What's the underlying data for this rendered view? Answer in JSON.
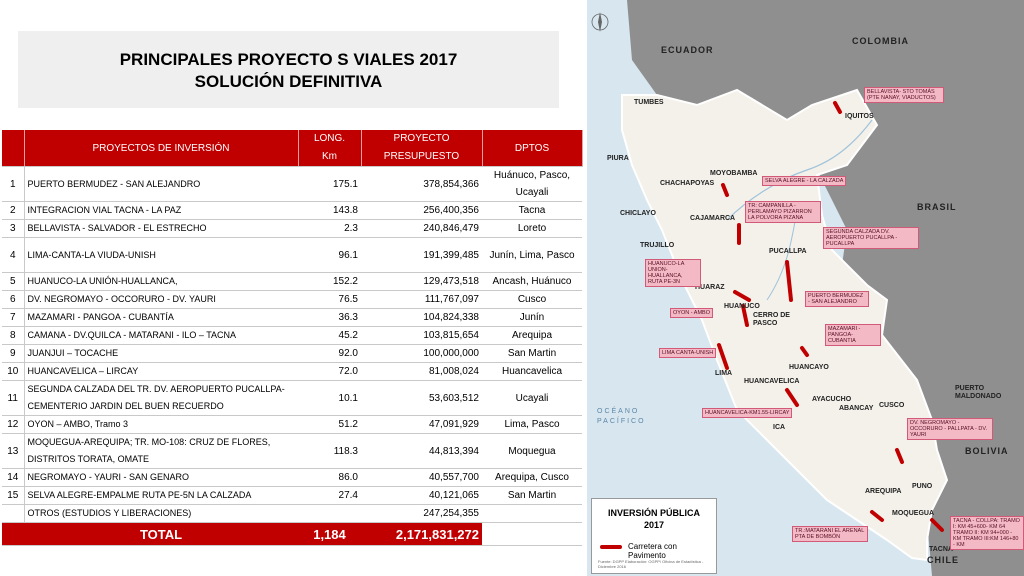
{
  "title": {
    "line1": "PRINCIPALES PROYECTO S VIALES  2017",
    "line2": "SOLUCIÓN DEFINITIVA"
  },
  "table": {
    "headers": {
      "projects": "PROYECTOS DE INVERSIÓN",
      "length": "LONG.\nKm",
      "budget": "PROYECTO\nPRESUPUESTO",
      "depts": "DPTOS"
    },
    "rows": [
      {
        "n": "1",
        "name": "PUERTO BERMUDEZ - SAN ALEJANDRO",
        "km": "175.1",
        "budget": "378,854,366",
        "dept": "Huánuco, Pasco, Ucayali"
      },
      {
        "n": "2",
        "name": "INTEGRACION VIAL TACNA - LA PAZ",
        "km": "143.8",
        "budget": "256,400,356",
        "dept": "Tacna"
      },
      {
        "n": "3",
        "name": "BELLAVISTA - SALVADOR - EL ESTRECHO",
        "km": "2.3",
        "budget": "240,846,479",
        "dept": "Loreto"
      },
      {
        "n": "4",
        "name": "LIMA-CANTA-LA VIUDA-UNISH",
        "km": "96.1",
        "budget": "191,399,485",
        "dept": "Junín, Lima, Pasco"
      },
      {
        "n": "5",
        "name": "HUANUCO-LA UNIÓN-HUALLANCA,",
        "km": "152.2",
        "budget": "129,473,518",
        "dept": "Ancash, Huánuco"
      },
      {
        "n": "6",
        "name": "DV. NEGROMAYO - OCCORURO - DV. YAURI",
        "km": "76.5",
        "budget": "111,767,097",
        "dept": "Cusco"
      },
      {
        "n": "7",
        "name": "MAZAMARI - PANGOA - CUBANTÍA",
        "km": "36.3",
        "budget": "104,824,338",
        "dept": "Junín"
      },
      {
        "n": "8",
        "name": "CAMANA - DV.QUILCA - MATARANI - ILO – TACNA",
        "km": "45.2",
        "budget": "103,815,654",
        "dept": "Arequipa"
      },
      {
        "n": "9",
        "name": "JUANJUI – TOCACHE",
        "km": "92.0",
        "budget": "100,000,000",
        "dept": "San Martin"
      },
      {
        "n": "10",
        "name": "HUANCAVELICA – LIRCAY",
        "km": "72.0",
        "budget": "81,008,024",
        "dept": "Huancavelica"
      },
      {
        "n": "11",
        "name": "SEGUNDA CALZADA DEL TR. DV. AEROPUERTO PUCALLPA-CEMENTERIO JARDIN DEL BUEN RECUERDO",
        "km": "10.1",
        "budget": "53,603,512",
        "dept": "Ucayali"
      },
      {
        "n": "12",
        "name": "OYON – AMBO, Tramo 3",
        "km": "51.2",
        "budget": "47,091,929",
        "dept": "Lima, Pasco"
      },
      {
        "n": "13",
        "name": "MOQUEGUA-AREQUIPA; TR. MO-108: CRUZ DE FLORES, DISTRITOS TORATA, OMATE",
        "km": "118.3",
        "budget": "44,813,394",
        "dept": "Moquegua"
      },
      {
        "n": "14",
        "name": " NEGROMAYO - YAURI - SAN GENARO",
        "km": "86.0",
        "budget": "40,557,700",
        "dept": "Arequipa, Cusco"
      },
      {
        "n": "15",
        "name": "SELVA ALEGRE-EMPALME RUTA PE-5N LA CALZADA",
        "km": "27.4",
        "budget": "40,121,065",
        "dept": "San Martin"
      },
      {
        "n": "",
        "name": "OTROS (ESTUDIOS Y LIBERACIONES)",
        "km": "",
        "budget": "247,254,355",
        "dept": ""
      }
    ],
    "total": {
      "label": "TOTAL",
      "km": "1,184",
      "budget": "2,171,831,272"
    }
  },
  "map": {
    "countries": [
      "ECUADOR",
      "COLOMBIA",
      "BRASIL",
      "BOLIVIA",
      "CHILE"
    ],
    "ocean": [
      "OCÉANO",
      "PACÍFICO"
    ],
    "cities": {
      "tumbes": "TUMBES",
      "piura": "PIURA",
      "chiclayo": "CHICLAYO",
      "chachapoyas": "CHACHAPOYAS",
      "moyobamba": "MOYOBAMBA",
      "cajamarca": "CAJAMARCA",
      "trujillo": "TRUJILLO",
      "huaraz": "HUARAZ",
      "huanuco": "HUANUCO",
      "cerro": "CERRO DE PASCO",
      "lima": "LIMA",
      "huancayo": "HUANCAYO",
      "huancavelica": "HUANCAVELICA",
      "ica": "ICA",
      "ayacucho": "AYACUCHO",
      "abancay": "ABANCAY",
      "cusco": "CUSCO",
      "arequipa": "AREQUIPA",
      "moquegua": "MOQUEGUA",
      "tacna": "TACNA",
      "puno": "PUNO",
      "iquitos": "IQUITOS",
      "pucallpa": "PUCALLPA",
      "pmaldonado": "PUERTO MALDONADO"
    },
    "callouts": {
      "bellavista": "BELLAVISTA- STO TOMÁS (PTE NANAY, VIADUCTOS)",
      "selva": "SELVA ALEGRE - LA CALZADA",
      "campanilla": "TR: CAMPANILLA - PERLAMAYO PIZARRON LA POLVORA PIZANA",
      "segunda": "SEGUNDA CALZADA DV. AEROPUERTO PUCALLPA - PUCALLPA",
      "huanuco": "HUANUCO-LA UNION-HUALLANCA, RUTA PE-3N",
      "bermudez": "PUERTO BERMUDEZ - SAN ALEJANDRO",
      "oyon": "OYON - AMBO",
      "mazamari": "MAZAMARI - PANGOA- CUBANTIA",
      "canta": "LIMA CANTA-UNISH",
      "huancavelica": "HUANCAVELICA-KM1.55-LIRCAY",
      "negromayo": "DV. NEGROMAYO - OCCORURO - PALLPATA - DV. YAURI",
      "matarani": "TR.:MATARANI EL ARENAL PTA DE BOMBÓN",
      "tacna": "TACNA - COLLPA: TRAMO I: KM 45+600- KM 64 TRAMO II: KM 94+000 - KM TRAMO III:KM 146+80 - KM"
    },
    "legend": {
      "title": "INVERSIÓN PÚBLICA 2017",
      "item": "Carretera con Pavimento",
      "source": "Fuente: DGPP Elaboración: OGPP/ Oficina de Estadística - Diciembre 2016"
    },
    "colors": {
      "road": "#c00000",
      "land": "#f4f1ea",
      "neighbor": "#8f8f8f",
      "sea": "#d7e6ef"
    }
  }
}
